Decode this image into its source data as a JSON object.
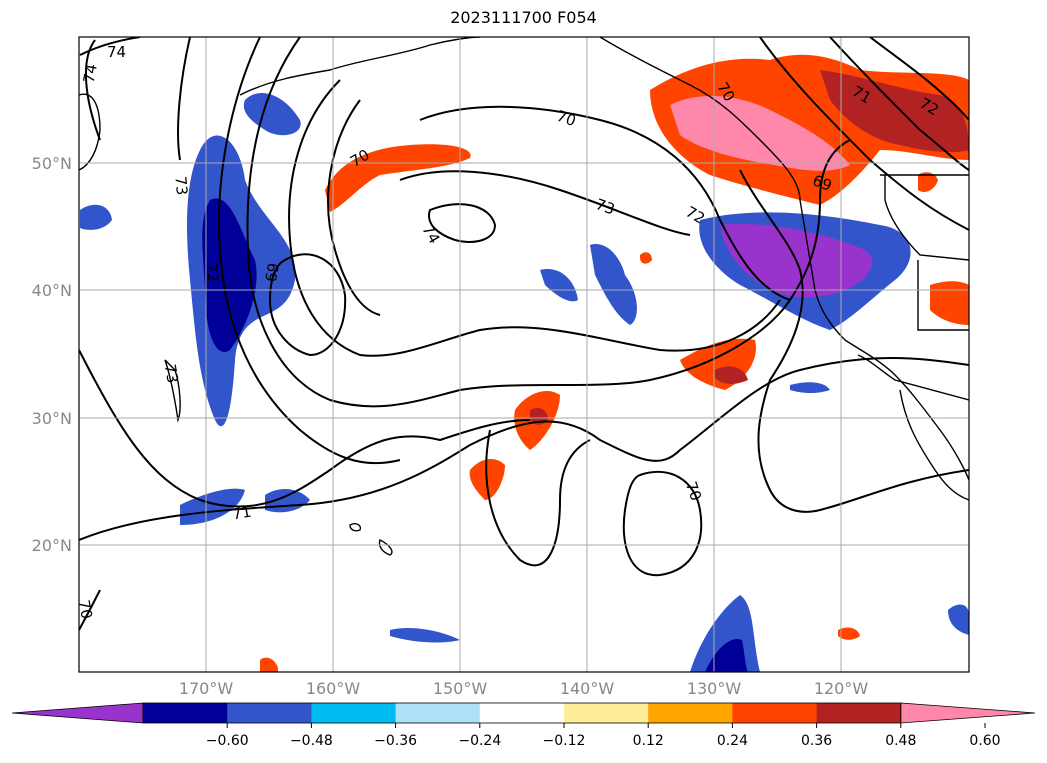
{
  "title": "2023111700 F054",
  "map": {
    "lon_labels": [
      "170°W",
      "160°W",
      "150°W",
      "140°W",
      "130°W",
      "120°W"
    ],
    "lat_labels": [
      "50°N",
      "40°N",
      "30°N",
      "20°N"
    ],
    "contour_labels": [
      {
        "text": "74"
      },
      {
        "text": "74"
      },
      {
        "text": "73"
      },
      {
        "text": "73"
      },
      {
        "text": "72"
      },
      {
        "text": "69"
      },
      {
        "text": "70"
      },
      {
        "text": "70"
      },
      {
        "text": "73"
      },
      {
        "text": "74"
      },
      {
        "text": "72"
      },
      {
        "text": "70"
      },
      {
        "text": "69"
      },
      {
        "text": "71"
      },
      {
        "text": "72"
      },
      {
        "text": "71"
      },
      {
        "text": "70"
      },
      {
        "text": "70"
      }
    ]
  },
  "colorbar": {
    "tick_labels": [
      "−0.60",
      "−0.48",
      "−0.36",
      "−0.24",
      "−0.12",
      "0.12",
      "0.24",
      "0.36",
      "0.48",
      "0.60"
    ],
    "colors": [
      "#9933cc",
      "#000099",
      "#3355cc",
      "#00bbf0",
      "#b0e0f8",
      "#ffffff",
      "#ffee99",
      "#ffa500",
      "#ff4400",
      "#b22222",
      "#ff88aa"
    ]
  }
}
